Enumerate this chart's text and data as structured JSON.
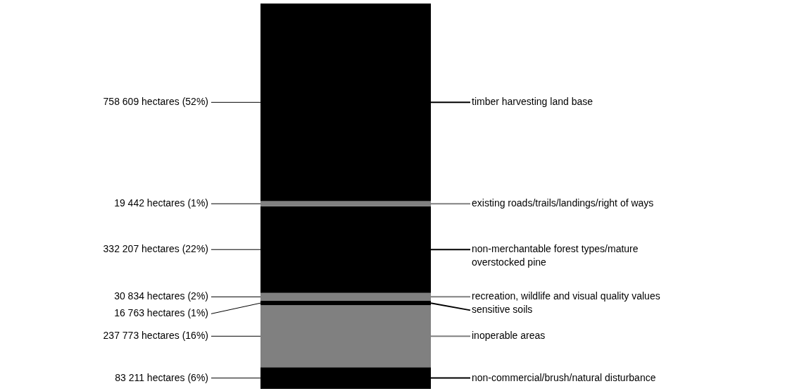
{
  "chart_data": {
    "type": "bar",
    "stacked": true,
    "legend": "right",
    "categories": [
      null
    ],
    "series": [
      {
        "name": "non-commercial/brush/natural disturbance",
        "color": "#000000",
        "values": [
          83211
        ],
        "value_labels": [
          "83 211 hectares (6%)"
        ]
      },
      {
        "name": "inoperable areas",
        "color": "#808080",
        "values": [
          237773
        ],
        "value_labels": [
          "237 773 hectares (16%)"
        ]
      },
      {
        "name": "sensitive soils",
        "color": "#000000",
        "values": [
          16763
        ],
        "value_labels": [
          "16 763 hectares (1%)"
        ]
      },
      {
        "name": "recreation, wildlife and visual quality values",
        "color": "#808080",
        "values": [
          30834
        ],
        "value_labels": [
          "30 834 hectares (2%)"
        ]
      },
      {
        "name": "non-merchantable forest types/mature overstocked pine",
        "color": "#000000",
        "values": [
          332207
        ],
        "value_labels": [
          "332 207 hectares (22%)"
        ]
      },
      {
        "name": "existing roads/trails/landings/right of ways",
        "color": "#808080",
        "values": [
          19442
        ],
        "value_labels": [
          "19 442 hectares (1%)"
        ]
      },
      {
        "name": "timber harvesting land base",
        "color": "#000000",
        "values": [
          758609
        ],
        "value_labels": [
          "758 609 hectares (52%)"
        ]
      }
    ]
  }
}
